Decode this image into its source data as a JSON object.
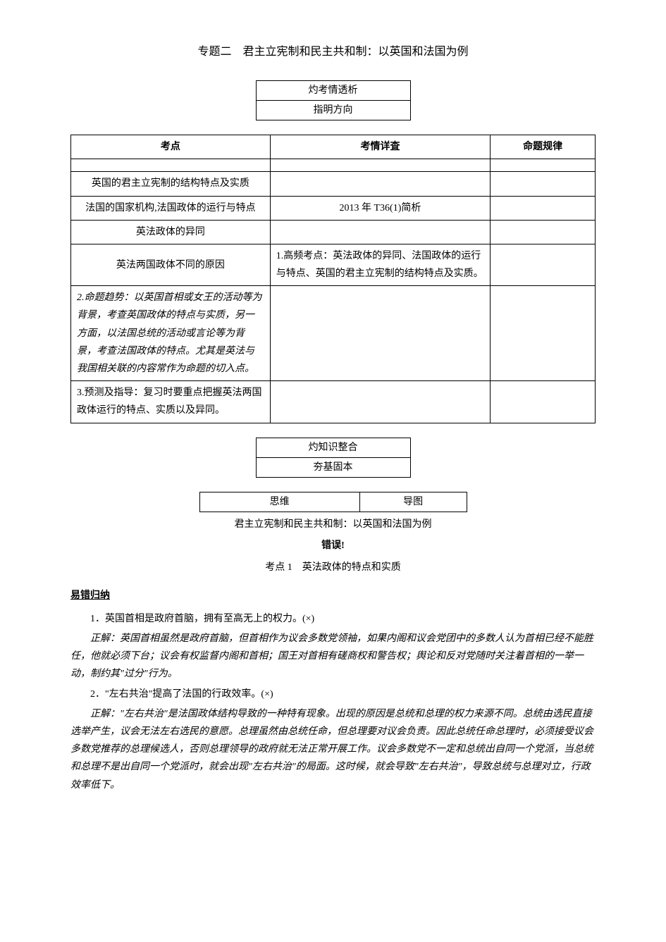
{
  "title": "专题二　君主立宪制和民主共和制：以英国和法国为例",
  "section1": {
    "line1": "灼考情透析",
    "line2": "指明方向"
  },
  "table": {
    "headers": [
      "考点",
      "考情详査",
      "命题规律"
    ],
    "rows": [
      {
        "c1": "英国的君主立宪制的结构特点及实质",
        "c2": "",
        "c3": ""
      },
      {
        "c1": "法国的国家机构,法国政体的运行与特点",
        "c2": "2013 年 T36(1)简析",
        "c3": ""
      },
      {
        "c1": "英法政体的异同",
        "c2": "",
        "c3": ""
      },
      {
        "c1": "英法两国政体不同的原因",
        "c2": "1.高频考点：英法政体的异同、法国政体的运行与特点、英国的君主立宪制的结构特点及实质。",
        "c3": ""
      },
      {
        "c1": "2.命题趋势：以英国首相或女王的活动等为背景，考查英国政体的特点与实质，另一方面，以法国总统的活动或言论等为背景，考查法国政体的特点。尤其是英法与我国相关联的内容常作为命题的切入点。",
        "c2": "",
        "c3": ""
      },
      {
        "c1": "3.预测及指导：复习时要重点把握英法两国政体运行的特点、实质以及异同。",
        "c2": "",
        "c3": ""
      }
    ]
  },
  "section2": {
    "line1": "灼知识整合",
    "line2": "夯基固本"
  },
  "mindmap": {
    "cell1": "思维",
    "cell2": "导图"
  },
  "subtitle": "君主立宪制和民主共和制：以英国和法国为例",
  "error_label": "错误!",
  "topic_heading": "考点 1　英法政体的特点和实质",
  "error_section": "易错归纳",
  "items": [
    {
      "statement": "1．英国首相是政府首脑，拥有至高无上的权力。(×)",
      "explanation": "正解：英国首相虽然是政府首脑，但首相作为议会多数党领袖，如果内阁和议会党团中的多数人认为首相已经不能胜任，他就必须下台；议会有权监督内阁和首相；国王对首相有磋商权和警告权；舆论和反对党随时关注着首相的一举一动，制约其\"过分\"行为。"
    },
    {
      "statement": "2．\"左右共治\"提高了法国的行政效率。(×)",
      "explanation": "正解：\"左右共治\"是法国政体结构导致的一种特有现象。出现的原因是总统和总理的权力来源不同。总统由选民直接选举产生，议会无法左右选民的意愿。总理虽然由总统任命，但总理要对议会负责。因此总统任命总理时，必须接受议会多数党推荐的总理候选人，否则总理领导的政府就无法正常开展工作。议会多数党不一定和总统出自同一个党派，当总统和总理不是出自同一个党派时，就会出现\"左右共治\"的局面。这时候，就会导致\"左右共治\"，导致总统与总理对立，行政效率低下。"
    }
  ]
}
